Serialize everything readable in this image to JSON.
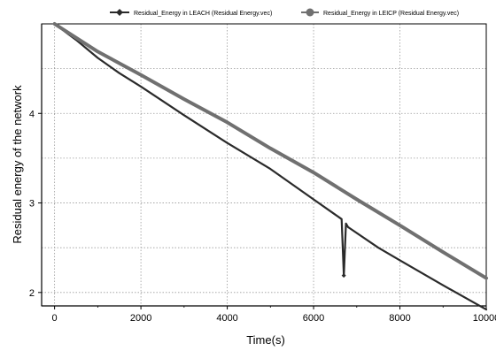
{
  "chart_data": {
    "type": "line",
    "title": "",
    "xlabel": "Time(s)",
    "ylabel": "Residual energy of the network",
    "xlim": [
      -300,
      10000
    ],
    "ylim": [
      1.85,
      5.0
    ],
    "xticks": [
      0,
      2000,
      4000,
      6000,
      8000,
      10000
    ],
    "xtick_labels": [
      "0",
      "2000",
      "4000",
      "6000",
      "8000",
      "10000"
    ],
    "yticks": [
      2,
      3,
      4
    ],
    "ytick_labels": [
      "2",
      "3",
      "4"
    ],
    "grid": true,
    "legend_position": "top-right",
    "series": [
      {
        "name": "Residual_Energy in LEACH (Residual Energy.vec)",
        "color": "#2a2a2a",
        "marker": "diamond",
        "x": [
          0,
          500,
          1000,
          1500,
          2000,
          3000,
          4000,
          5000,
          6000,
          6500,
          6650,
          6700,
          6750,
          6800,
          7500,
          8000,
          9000,
          10000
        ],
        "y": [
          5.0,
          4.82,
          4.62,
          4.45,
          4.3,
          3.98,
          3.67,
          3.38,
          3.04,
          2.87,
          2.82,
          2.19,
          2.77,
          2.73,
          2.5,
          2.36,
          2.08,
          1.81
        ]
      },
      {
        "name": "Residual_Energy in LEICP (Residual Energy.vec)",
        "color": "#707070",
        "marker": "circle",
        "x": [
          0,
          1000,
          2000,
          3000,
          4000,
          5000,
          6000,
          7000,
          8000,
          9000,
          10000
        ],
        "y": [
          5.0,
          4.69,
          4.43,
          4.16,
          3.9,
          3.61,
          3.34,
          3.04,
          2.75,
          2.45,
          2.16
        ]
      }
    ]
  }
}
